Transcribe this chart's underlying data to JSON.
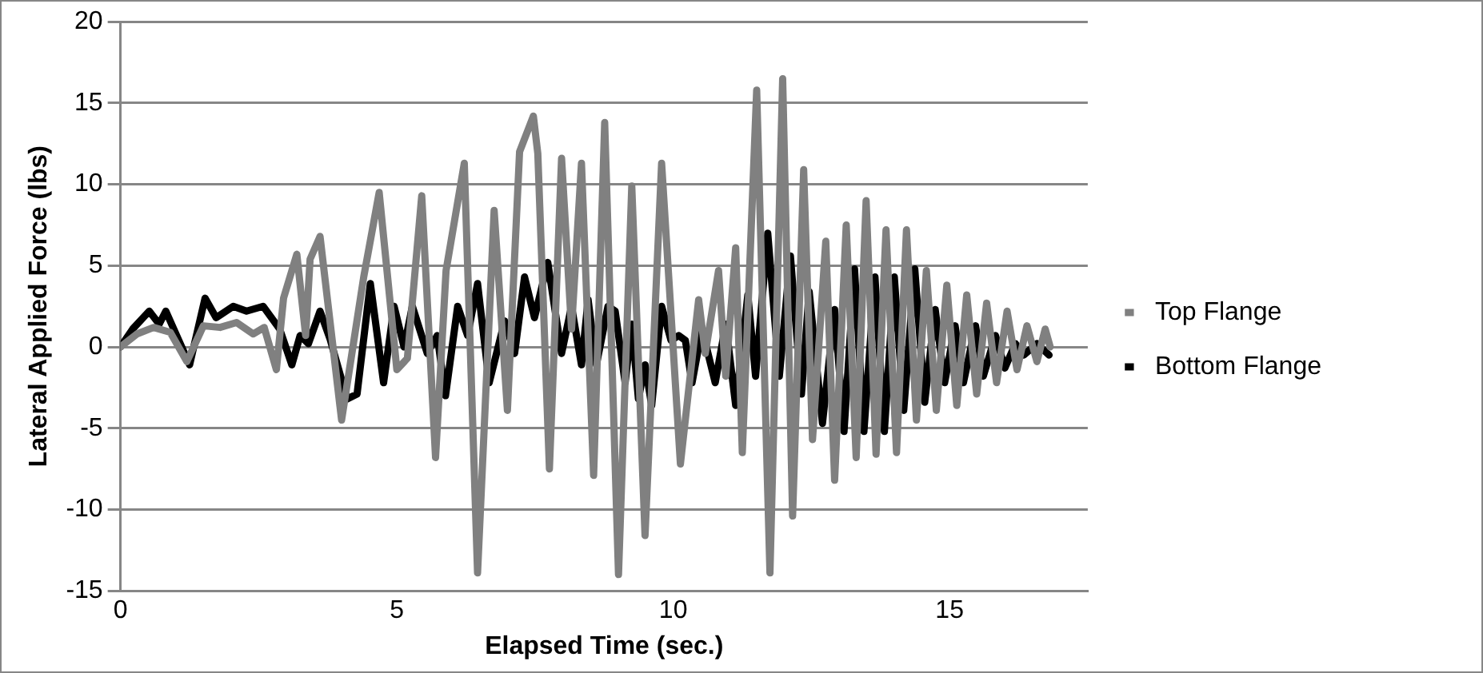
{
  "chart_data": {
    "type": "line",
    "xlabel": "Elapsed Time (sec.)",
    "ylabel": "Lateral Applied Force (lbs)",
    "xlim": [
      0,
      17.5
    ],
    "xticks": [
      0,
      5,
      10,
      15
    ],
    "ylim": [
      -15,
      20
    ],
    "yticks": [
      -15,
      -10,
      -5,
      0,
      5,
      10,
      15,
      20
    ],
    "grid": "y",
    "legend": "right",
    "marker": "none",
    "line_style": "solid",
    "series": [
      {
        "name": "Top Flange",
        "color": "#808080",
        "x": [
          0,
          0.3,
          0.6,
          0.9,
          1.2,
          1.5,
          1.8,
          2.1,
          2.4,
          2.6,
          2.82,
          2.95,
          3.19,
          3.35,
          3.43,
          3.61,
          4.0,
          4.4,
          4.68,
          5.0,
          5.19,
          5.45,
          5.7,
          5.89,
          6.22,
          6.46,
          6.76,
          7.0,
          7.22,
          7.47,
          7.55,
          7.76,
          7.98,
          8.16,
          8.34,
          8.56,
          8.76,
          9.01,
          9.25,
          9.49,
          9.79,
          10.13,
          10.46,
          10.58,
          10.82,
          10.95,
          11.13,
          11.25,
          11.51,
          11.75,
          11.98,
          12.16,
          12.36,
          12.52,
          12.76,
          12.92,
          13.13,
          13.31,
          13.49,
          13.67,
          13.85,
          14.04,
          14.22,
          14.4,
          14.58,
          14.76,
          14.95,
          15.13,
          15.31,
          15.49,
          15.67,
          15.85,
          16.04,
          16.22,
          16.4,
          16.58,
          16.73,
          16.82
        ],
        "values": [
          0,
          0.8,
          1.2,
          0.9,
          -0.9,
          1.3,
          1.2,
          1.5,
          0.8,
          1.2,
          -1.4,
          3,
          5.7,
          0.7,
          5.4,
          6.8,
          -4.5,
          4.3,
          9.5,
          -1.4,
          -0.7,
          9.3,
          -6.8,
          4.7,
          11.3,
          -13.9,
          8.4,
          -3.9,
          12,
          14.2,
          11.9,
          -7.5,
          11.6,
          1.1,
          11.3,
          -7.9,
          13.8,
          -14,
          9.9,
          -11.6,
          11.3,
          -7.2,
          2.9,
          -0.4,
          4.7,
          -1.8,
          6.1,
          -6.5,
          15.8,
          -13.9,
          16.5,
          -10.4,
          10.9,
          -5.7,
          6.5,
          -8.2,
          7.5,
          -6.8,
          9,
          -6.6,
          7.2,
          -6.5,
          7.2,
          -4.5,
          4.7,
          -3.9,
          3.8,
          -3.6,
          3.2,
          -2.9,
          2.7,
          -2.2,
          2.2,
          -1.4,
          1.3,
          -0.9,
          1.1,
          0
        ]
      },
      {
        "name": "Bottom Flange",
        "color": "#000000",
        "x": [
          0,
          0.22,
          0.52,
          0.7,
          0.82,
          1.25,
          1.53,
          1.73,
          2.04,
          2.28,
          2.58,
          2.88,
          3.1,
          3.25,
          3.4,
          3.61,
          3.79,
          4.1,
          4.28,
          4.52,
          4.76,
          4.95,
          5.13,
          5.28,
          5.55,
          5.73,
          5.88,
          6.1,
          6.28,
          6.46,
          6.67,
          6.95,
          7.13,
          7.31,
          7.49,
          7.73,
          7.98,
          8.16,
          8.34,
          8.46,
          8.61,
          8.82,
          8.95,
          9.13,
          9.25,
          9.37,
          9.49,
          9.61,
          9.79,
          9.96,
          10.1,
          10.22,
          10.34,
          10.52,
          10.76,
          10.95,
          11.13,
          11.35,
          11.49,
          11.71,
          11.92,
          12.12,
          12.32,
          12.46,
          12.7,
          12.92,
          13.09,
          13.28,
          13.45,
          13.65,
          13.82,
          14.0,
          14.17,
          14.37,
          14.55,
          14.74,
          14.91,
          15.1,
          15.25,
          15.47,
          15.61,
          15.83,
          16.0,
          16.19,
          16.34,
          16.58,
          16.8
        ],
        "values": [
          0,
          1.1,
          2.2,
          1.4,
          2.2,
          -1.1,
          3,
          1.8,
          2.5,
          2.2,
          2.5,
          1.1,
          -1.1,
          0.7,
          0.2,
          2.2,
          0.5,
          -3.2,
          -2.9,
          3.9,
          -2.2,
          2.5,
          0,
          2.5,
          -0.4,
          0.7,
          -3,
          2.5,
          0.7,
          3.9,
          -2.2,
          1.6,
          -0.4,
          4.3,
          1.8,
          5.2,
          -0.4,
          2.5,
          -1.1,
          2.9,
          -1.1,
          2.5,
          2.2,
          -2.2,
          1.4,
          -3.2,
          -1.1,
          -3.6,
          2.5,
          0.4,
          0.7,
          0.4,
          -2.2,
          1.1,
          -2.2,
          1.4,
          -3.6,
          3.2,
          -1.8,
          7,
          -1.8,
          5.6,
          -2.9,
          3.4,
          -4.7,
          2.3,
          -5.2,
          4.8,
          -5.2,
          4.3,
          -5.2,
          4.3,
          -3.9,
          4.8,
          -3.4,
          2.3,
          -2.2,
          1.3,
          -2.2,
          1.3,
          -1.8,
          0.7,
          -1.3,
          0.2,
          -0.5,
          0.2,
          -0.5
        ]
      }
    ]
  }
}
